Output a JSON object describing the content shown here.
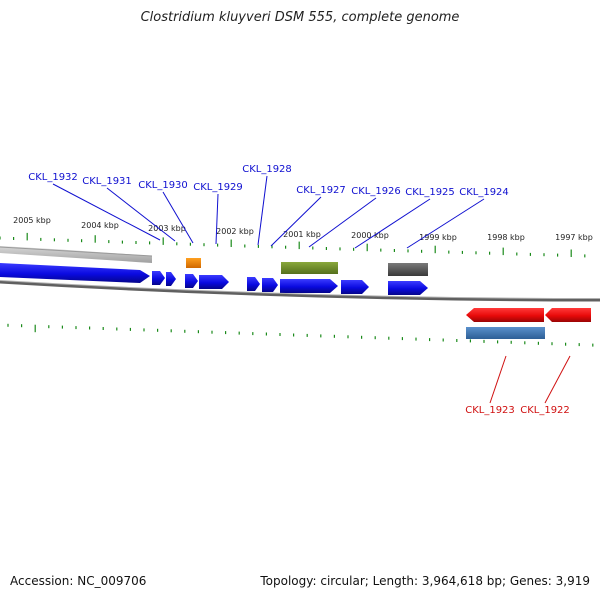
{
  "title": "Clostridium kluyveri DSM 555, complete genome",
  "footer": {
    "accession": "Accession: NC_009706",
    "summary": "Topology: circular; Length: 3,964,618 bp; Genes: 3,919"
  },
  "scale": {
    "labels": [
      "2005 kbp",
      "2004 kbp",
      "2003 kbp",
      "2002 kbp",
      "2001 kbp",
      "2000 kbp",
      "1999 kbp",
      "1998 kbp",
      "1997 kbp"
    ]
  },
  "genes_top": [
    {
      "label": "CKL_1932"
    },
    {
      "label": "CKL_1931"
    },
    {
      "label": "CKL_1930"
    },
    {
      "label": "CKL_1929"
    },
    {
      "label": "CKL_1928"
    },
    {
      "label": "CKL_1927"
    },
    {
      "label": "CKL_1926"
    },
    {
      "label": "CKL_1925"
    },
    {
      "label": "CKL_1924"
    }
  ],
  "genes_bottom": [
    {
      "label": "CKL_1923"
    },
    {
      "label": "CKL_1922"
    }
  ],
  "colors": {
    "forward_gene": "#1010e0",
    "reverse_gene": "#e01010",
    "forward_label": "#1010d0",
    "reverse_label": "#d01010",
    "tick": "#1a8a1a",
    "backbone": "#707070",
    "orange_feature": "#f08000",
    "olive_feature": "#6f8f2a",
    "gray_feature": "#5a5a5a",
    "steelblue_feature": "#3f78b4",
    "lightgray_feature": "#b8b8b8"
  }
}
